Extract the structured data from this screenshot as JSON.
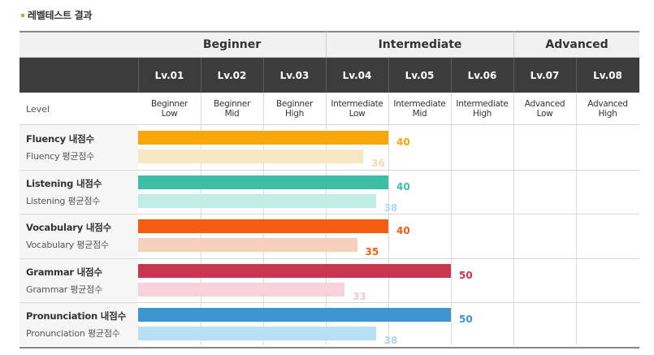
{
  "page_title": "레벨테스트 결과",
  "groups": [
    "Beginner",
    "Intermediate",
    "Advanced"
  ],
  "levels": [
    "Lv.01",
    "Lv.02",
    "Lv.03",
    "Lv.04",
    "Lv.05",
    "Lv.06",
    "Lv.07",
    "Lv.08"
  ],
  "level_label": "Level",
  "level_names": [
    [
      "Beginner",
      "Low"
    ],
    [
      "Beginner",
      "Mid"
    ],
    [
      "Beginner",
      "High"
    ],
    [
      "Intermediate",
      "Low"
    ],
    [
      "Intermediate",
      "Mid"
    ],
    [
      "Intermediate",
      "High"
    ],
    [
      "Advanced",
      "Low"
    ],
    [
      "Advanced",
      "High"
    ]
  ],
  "scale_max_levels": 8,
  "skills": [
    {
      "my_label": "Fluency 내점수",
      "avg_label": "Fluency 평균점수",
      "my_score": "40",
      "avg_score": "36",
      "my_color": "#f7a70a",
      "avg_color": "#f7e6c4",
      "my_text_color": "#f7a70a",
      "avg_text_color": "#f3d9b0"
    },
    {
      "my_label": "Listening 내점수",
      "avg_label": "Listening 평균점수",
      "my_score": "40",
      "avg_score": "38",
      "my_color": "#3cbfa6",
      "avg_color": "#bfece3",
      "my_text_color": "#3cbfa6",
      "avg_text_color": "#a9dff0"
    },
    {
      "my_label": "Vocabulary 내점수",
      "avg_label": "Vocabulary 평균점수",
      "my_score": "40",
      "avg_score": "35",
      "my_color": "#f55e11",
      "avg_color": "#f7cfbd",
      "my_text_color": "#f55e11",
      "avg_text_color": "#f55e11"
    },
    {
      "my_label": "Grammar 내점수",
      "avg_label": "Grammar 평균점수",
      "my_score": "50",
      "avg_score": "33",
      "my_color": "#c8374f",
      "avg_color": "#f7d2dc",
      "my_text_color": "#c8374f",
      "avg_text_color": "#f7c7d3"
    },
    {
      "my_label": "Pronunciation 내점수",
      "avg_label": "Pronunciation 평균점수",
      "my_score": "50",
      "avg_score": "38",
      "my_color": "#3d96cf",
      "avg_color": "#b7dff5",
      "my_text_color": "#3d96cf",
      "avg_text_color": "#a9d7f0"
    }
  ]
}
